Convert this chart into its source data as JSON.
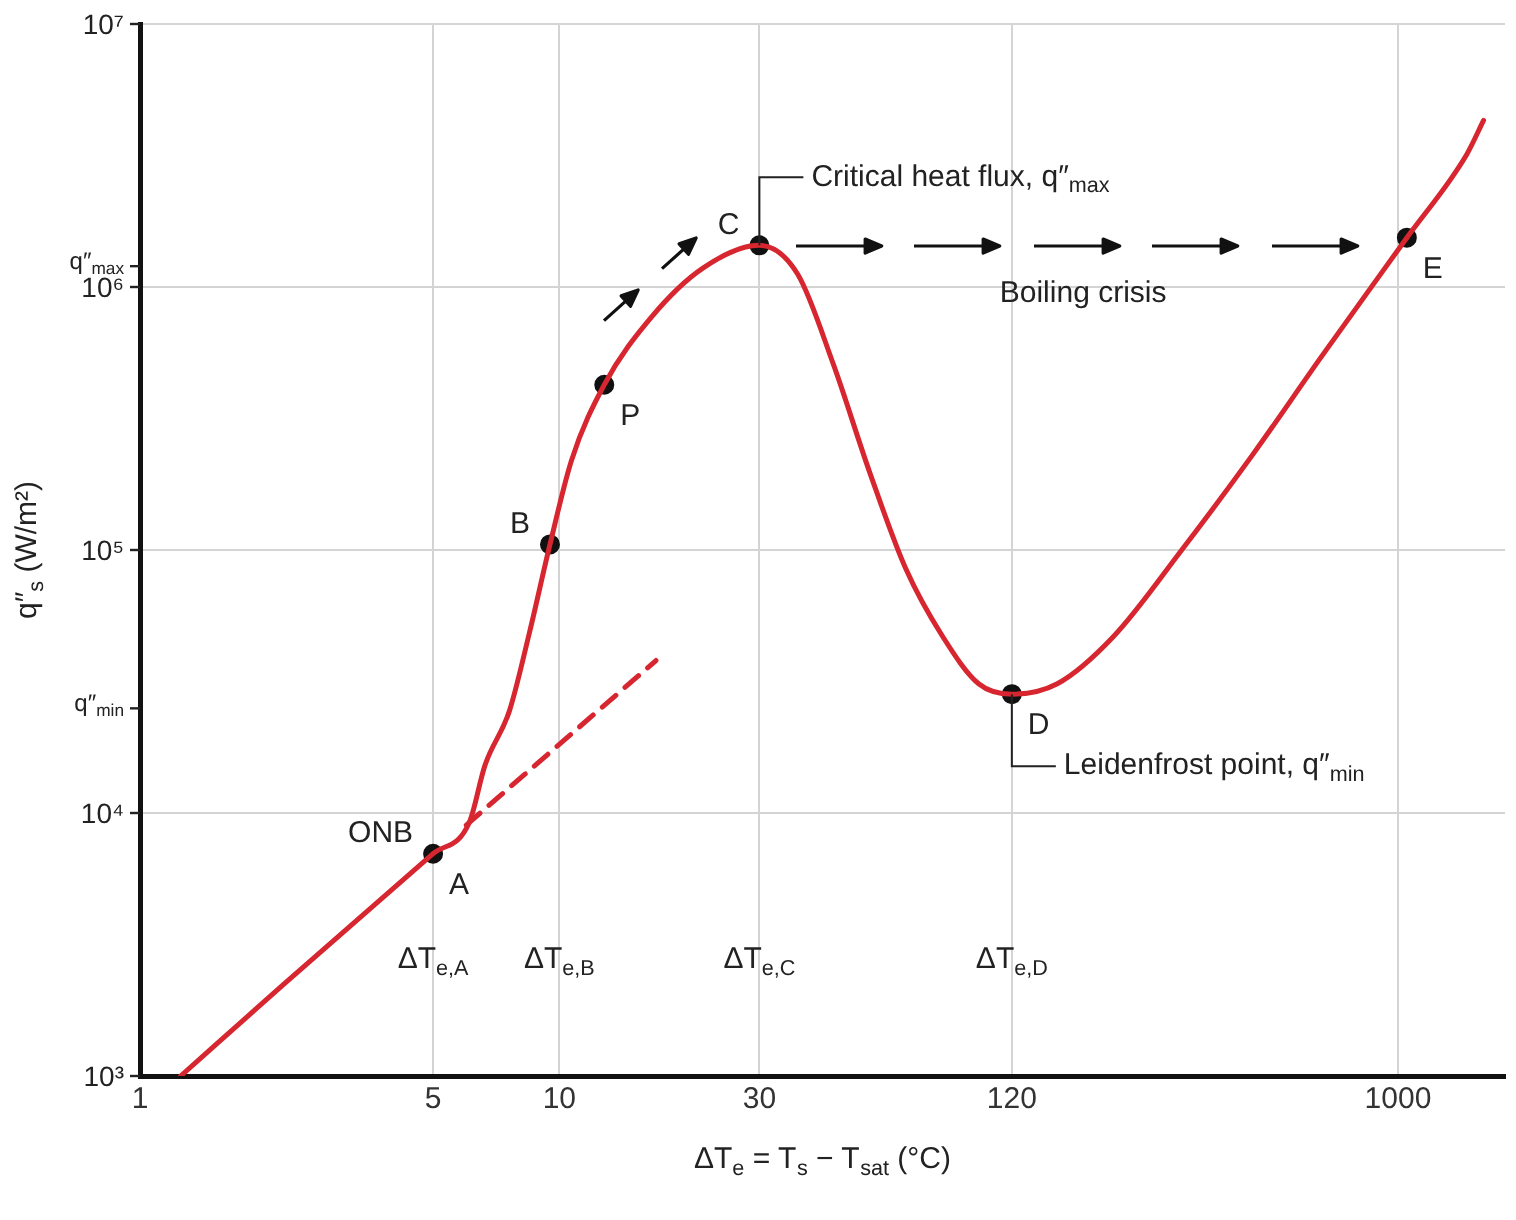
{
  "chart_data": {
    "type": "line",
    "xlabel": "ΔT$_{e}$ = T$_{s}$ − T$_{sat}$ (°C)",
    "ylabel": "q″$_{s}$ (W/m²)",
    "log": "xy",
    "grid": true,
    "legend": false,
    "xlim": [
      1,
      1800
    ],
    "xticks": [
      1,
      5,
      10,
      30,
      120,
      1000
    ],
    "ylim": [
      1000,
      10000000
    ],
    "yticks": [
      {
        "value": 1000,
        "label": "10³"
      },
      {
        "value": 10000,
        "label": "10⁴"
      },
      {
        "value": 100000,
        "label": "10⁵"
      },
      {
        "value": 1000000,
        "label": "10⁶"
      },
      {
        "value": 10000000,
        "label": "10⁷"
      },
      {
        "value": 1200000,
        "label": "q″$_{max}$"
      },
      {
        "value": 25000,
        "label": "q″$_{min}$"
      }
    ],
    "series": [
      {
        "color": "#d7262f",
        "line_style": "solid",
        "marker": "none",
        "x": [
          1.25,
          2.2,
          5,
          6.1,
          6.65,
          7.6,
          8.5,
          9.5,
          10.7,
          12.8,
          16.6,
          22,
          30,
          37,
          45,
          55,
          67,
          82,
          100,
          120,
          154,
          210,
          305,
          450,
          655,
          1050,
          1460,
          1600
        ],
        "values": [
          1000,
          2230,
          7000,
          9200,
          15200,
          24400,
          49000,
          105000,
          220000,
          425000,
          770000,
          1180000,
          1440000,
          1120000,
          510000,
          197000,
          85000,
          47000,
          31000,
          28300,
          31000,
          47000,
          100000,
          230000,
          540000,
          1540000,
          3200000,
          4300000
        ]
      },
      {
        "color": "#d7262f",
        "line_style": "dashed",
        "marker": "none",
        "x": [
          6,
          17
        ],
        "values": [
          9000,
          38000
        ]
      },
      {
        "type": "scatter",
        "color": "#111111",
        "marker": "circle",
        "x": [
          5,
          9.5,
          12.8,
          30,
          120,
          1050
        ],
        "values": [
          7000,
          105000,
          425000,
          1440000,
          28300,
          1540000
        ]
      }
    ],
    "annotations": [
      {
        "text": "A",
        "x": 5,
        "y": 7000
      },
      {
        "text": "ONB",
        "x": 5,
        "y": 7000
      },
      {
        "text": "B",
        "x": 9.5,
        "y": 105000
      },
      {
        "text": "P",
        "x": 12.8,
        "y": 425000
      },
      {
        "text": "C",
        "x": 30,
        "y": 1440000
      },
      {
        "text": "Critical heat flux, q″$_{max}$",
        "x": 30,
        "y": 1440000
      },
      "Boiling crisis",
      {
        "text": "D",
        "x": 120,
        "y": 28300
      },
      {
        "text": "Leidenfrost point, q″$_{min}$",
        "x": 120,
        "y": 28300
      },
      {
        "text": "E",
        "x": 1050,
        "y": 1540000
      },
      "ΔT$_{e,A}$",
      "ΔT$_{e,B}$",
      "ΔT$_{e,C}$",
      "ΔT$_{e,D}$"
    ]
  }
}
